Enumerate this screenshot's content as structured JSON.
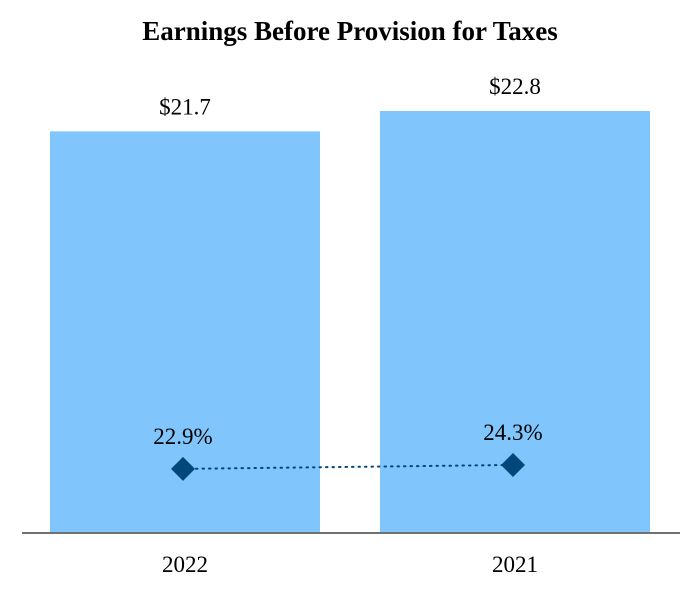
{
  "chart_data": {
    "type": "bar",
    "title": "Earnings Before Provision for Taxes",
    "categories": [
      "2022",
      "2021"
    ],
    "series": [
      {
        "type": "bar",
        "values": [
          21.7,
          22.8
        ],
        "labels": [
          "$21.7",
          "$22.8"
        ],
        "color": "#80c6fc"
      },
      {
        "type": "line",
        "values": [
          22.9,
          24.3
        ],
        "labels": [
          "22.9%",
          "24.3%"
        ],
        "color": "#00477a",
        "marker": "diamond",
        "line_style": "dotted"
      }
    ],
    "ylim": [
      0,
      22.8
    ],
    "secondary_ylim": [
      0,
      100
    ],
    "grid": false,
    "legend": "none",
    "xlabel": "",
    "ylabel": ""
  }
}
